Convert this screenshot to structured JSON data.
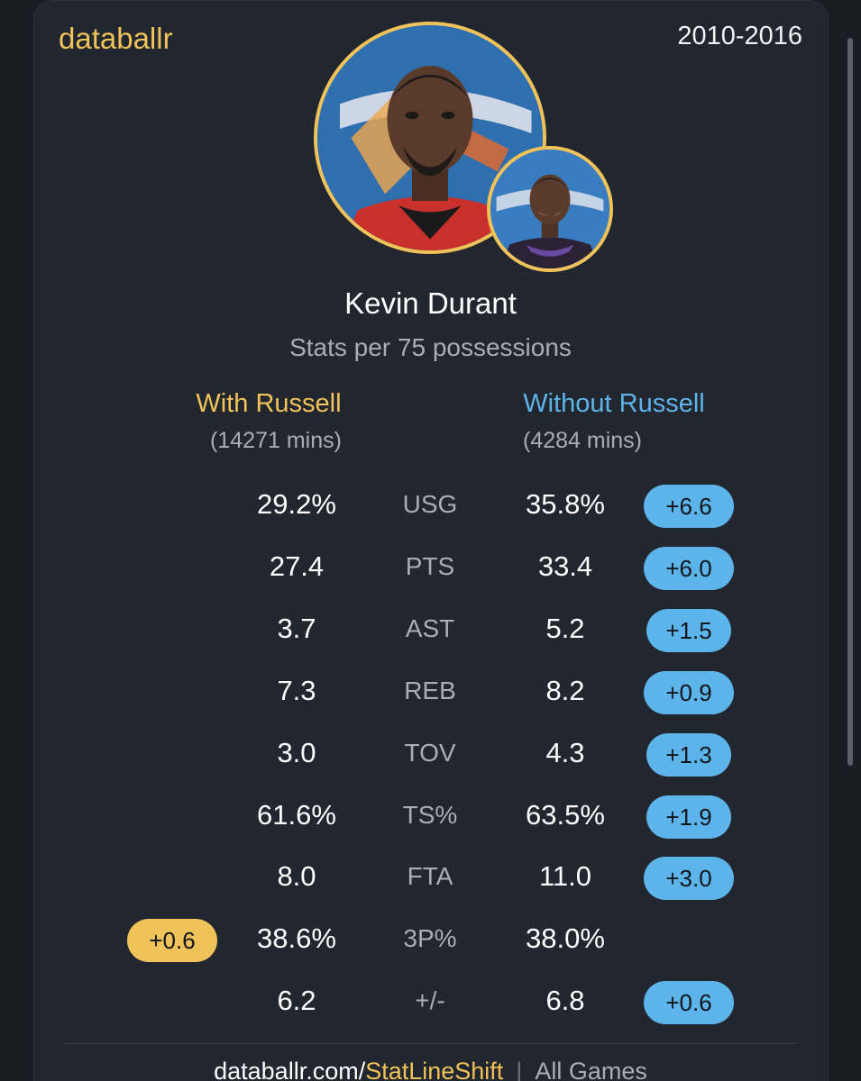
{
  "header": {
    "brand": "databallr",
    "years": "2010-2016"
  },
  "player": {
    "name": "Kevin Durant",
    "subtitle": "Stats per 75 possessions"
  },
  "columns": {
    "with_label": "With Russell",
    "with_mins": "(14271 mins)",
    "without_label": "Without Russell",
    "without_mins": "(4284 mins)"
  },
  "stats": [
    {
      "label": "USG",
      "with": "29.2%",
      "without": "35.8%",
      "diff": "+6.6",
      "diff_side": "without"
    },
    {
      "label": "PTS",
      "with": "27.4",
      "without": "33.4",
      "diff": "+6.0",
      "diff_side": "without"
    },
    {
      "label": "AST",
      "with": "3.7",
      "without": "5.2",
      "diff": "+1.5",
      "diff_side": "without"
    },
    {
      "label": "REB",
      "with": "7.3",
      "without": "8.2",
      "diff": "+0.9",
      "diff_side": "without"
    },
    {
      "label": "TOV",
      "with": "3.0",
      "without": "4.3",
      "diff": "+1.3",
      "diff_side": "without"
    },
    {
      "label": "TS%",
      "with": "61.6%",
      "without": "63.5%",
      "diff": "+1.9",
      "diff_side": "without"
    },
    {
      "label": "FTA",
      "with": "8.0",
      "without": "11.0",
      "diff": "+3.0",
      "diff_side": "without"
    },
    {
      "label": "3P%",
      "with": "38.6%",
      "without": "38.0%",
      "diff": "+0.6",
      "diff_side": "with"
    },
    {
      "label": "+/-",
      "with": "6.2",
      "without": "6.8",
      "diff": "+0.6",
      "diff_side": "without"
    }
  ],
  "footer": {
    "site": "databallr.com/",
    "link": "StatLineShift",
    "separator": "|",
    "filter": "All Games"
  },
  "colors": {
    "accent_gold": "#f0c35a",
    "accent_blue": "#5db4ea",
    "card_bg": "#22262e"
  },
  "icons": {
    "main_avatar": "player-photo-kevin-durant",
    "secondary_avatar": "player-photo-russell"
  }
}
